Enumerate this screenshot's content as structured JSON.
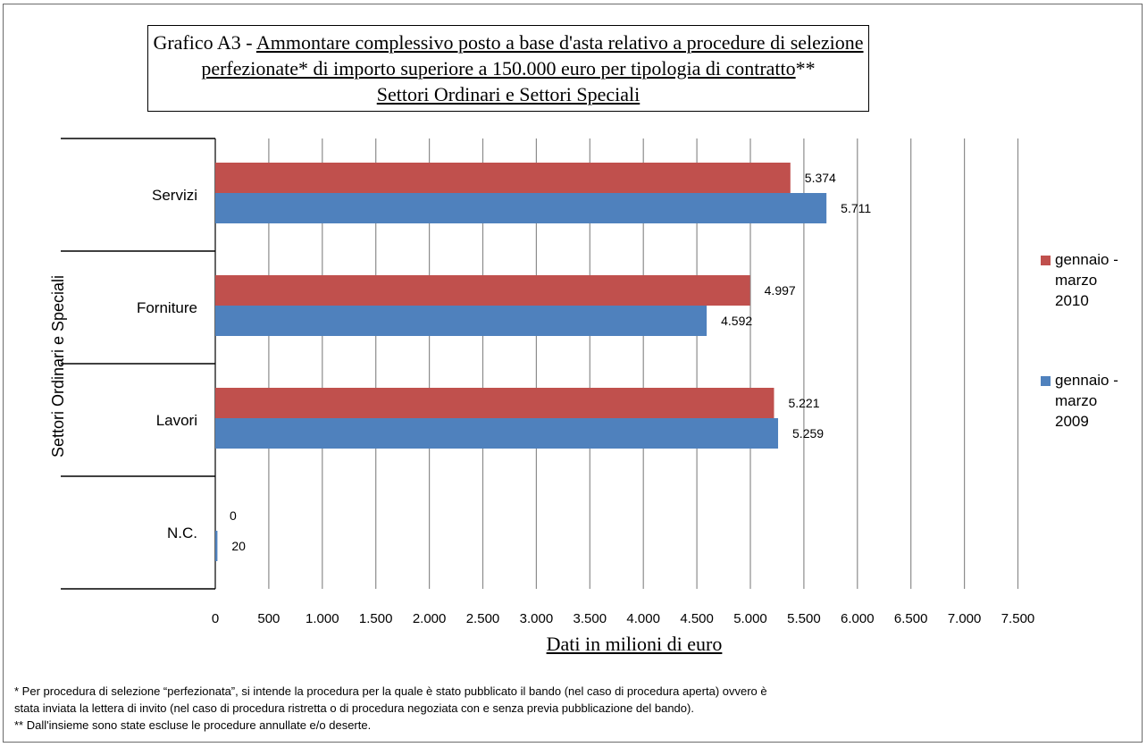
{
  "title": {
    "prefix": "Grafico A3 - ",
    "line1": "Ammontare complessivo posto a base d'asta relativo a procedure di selezione",
    "line2": "perfezionate* di importo superiore a 150.000 euro per tipologia di contratto",
    "line2_suffix": "**",
    "line3": "Settori Ordinari e Settori Speciali"
  },
  "colors": {
    "series_2010": "#c0504d",
    "series_2009": "#4f81bd",
    "grid": "#8c8c8c"
  },
  "chart_data": {
    "type": "bar",
    "orientation": "horizontal",
    "categories": [
      "Servizi",
      "Forniture",
      "Lavori",
      "N.C."
    ],
    "series": [
      {
        "name": "gennaio - marzo 2010",
        "values": [
          5374,
          4997,
          5221,
          0
        ],
        "labels": [
          "5.374",
          "4.997",
          "5.221",
          "0"
        ]
      },
      {
        "name": "gennaio - marzo 2009",
        "values": [
          5711,
          4592,
          5259,
          20
        ],
        "labels": [
          "5.711",
          "4.592",
          "5.259",
          "20"
        ]
      }
    ],
    "xlim": [
      0,
      7500
    ],
    "x_ticks": [
      0,
      500,
      1000,
      1500,
      2000,
      2500,
      3000,
      3500,
      4000,
      4500,
      5000,
      5500,
      6000,
      6500,
      7000,
      7500
    ],
    "x_tick_labels": [
      "0",
      "500",
      "1.000",
      "1.500",
      "2.000",
      "2.500",
      "3.000",
      "3.500",
      "4.000",
      "4.500",
      "5.000",
      "5.500",
      "6.000",
      "6.500",
      "7.000",
      "7.500"
    ],
    "xlabel": "Dati in milioni di euro",
    "ylabel": "Settori Ordinari e Speciali",
    "grid": "vertical",
    "legend_position": "right"
  },
  "legend": [
    {
      "label": "gennaio - marzo 2010"
    },
    {
      "label": "gennaio - marzo 2009"
    }
  ],
  "footnotes": {
    "note1_line1": "* Per procedura di selezione “perfezionata”, si intende la procedura per la quale è stato pubblicato il bando (nel caso di procedura aperta) ovvero è",
    "note1_line2": "stata inviata la lettera di invito (nel caso di procedura ristretta o di procedura negoziata con e senza previa pubblicazione del bando).",
    "note2": "** Dall'insieme sono state escluse le procedure annullate e/o deserte."
  }
}
